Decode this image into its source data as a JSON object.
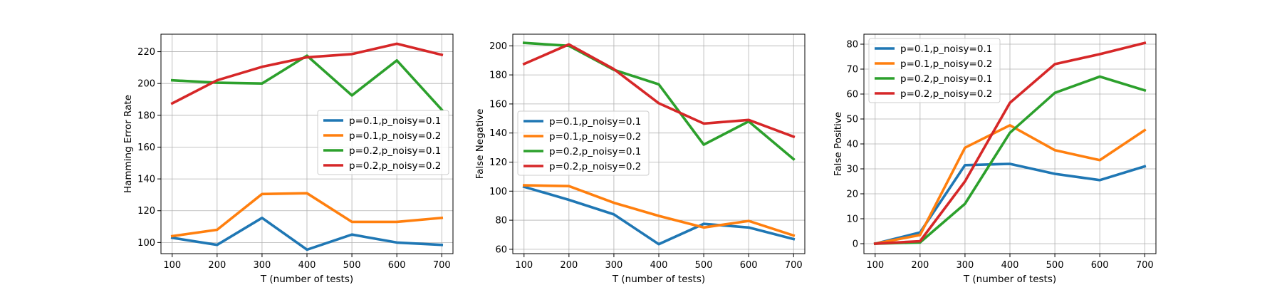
{
  "chart_data": [
    {
      "type": "line",
      "xlabel": "T (number of tests)",
      "ylabel": "Hamming Error Rate",
      "x": [
        100,
        200,
        300,
        400,
        500,
        600,
        700
      ],
      "xticks": [
        100,
        200,
        300,
        400,
        500,
        600,
        700
      ],
      "xlim": [
        75,
        725
      ],
      "yticks": [
        100,
        120,
        140,
        160,
        180,
        200,
        220
      ],
      "ylim": [
        93,
        231
      ],
      "grid": true,
      "legend_position": "center-right",
      "series": [
        {
          "name": "p=0.1,p_noisy=0.1",
          "color": "#1f77b4",
          "values": [
            103,
            98.5,
            115.5,
            95.5,
            105,
            100,
            98.5
          ]
        },
        {
          "name": "p=0.1,p_noisy=0.2",
          "color": "#ff7f0e",
          "values": [
            104,
            108,
            130.5,
            131,
            113,
            113,
            115.5
          ]
        },
        {
          "name": "p=0.2,p_noisy=0.1",
          "color": "#2ca02c",
          "values": [
            202,
            200.5,
            200,
            217.5,
            192.5,
            214.5,
            183.5
          ]
        },
        {
          "name": "p=0.2,p_noisy=0.2",
          "color": "#d62728",
          "values": [
            187.5,
            202,
            210.5,
            216.5,
            218.5,
            225,
            218
          ]
        }
      ]
    },
    {
      "type": "line",
      "xlabel": "T (number of tests)",
      "ylabel": "False Negative",
      "x": [
        100,
        200,
        300,
        400,
        500,
        600,
        700
      ],
      "xticks": [
        100,
        200,
        300,
        400,
        500,
        600,
        700
      ],
      "xlim": [
        75,
        725
      ],
      "yticks": [
        60,
        80,
        100,
        120,
        140,
        160,
        180,
        200
      ],
      "ylim": [
        57,
        208
      ],
      "grid": true,
      "legend_position": "center-left",
      "series": [
        {
          "name": "p=0.1,p_noisy=0.1",
          "color": "#1f77b4",
          "values": [
            103,
            94,
            84,
            63.5,
            77.5,
            75,
            67
          ]
        },
        {
          "name": "p=0.1,p_noisy=0.2",
          "color": "#ff7f0e",
          "values": [
            104,
            103.5,
            92,
            83,
            75,
            79.5,
            69.5
          ]
        },
        {
          "name": "p=0.2,p_noisy=0.1",
          "color": "#2ca02c",
          "values": [
            202,
            200,
            183.5,
            173.5,
            132,
            148,
            122
          ]
        },
        {
          "name": "p=0.2,p_noisy=0.2",
          "color": "#d62728",
          "values": [
            187.5,
            201,
            184,
            160.5,
            146.5,
            149,
            137.5
          ]
        }
      ]
    },
    {
      "type": "line",
      "xlabel": "T (number of tests)",
      "ylabel": "False Positive",
      "x": [
        100,
        200,
        300,
        400,
        500,
        600,
        700
      ],
      "xticks": [
        100,
        200,
        300,
        400,
        500,
        600,
        700
      ],
      "xlim": [
        75,
        725
      ],
      "yticks": [
        0,
        10,
        20,
        30,
        40,
        50,
        60,
        70,
        80
      ],
      "ylim": [
        -4,
        84
      ],
      "grid": true,
      "legend_position": "upper-left",
      "series": [
        {
          "name": "p=0.1,p_noisy=0.1",
          "color": "#1f77b4",
          "values": [
            0,
            4.5,
            31.5,
            32,
            28,
            25.5,
            31
          ]
        },
        {
          "name": "p=0.1,p_noisy=0.2",
          "color": "#ff7f0e",
          "values": [
            0,
            3.5,
            38.5,
            47.5,
            37.5,
            33.5,
            45.5
          ]
        },
        {
          "name": "p=0.2,p_noisy=0.1",
          "color": "#2ca02c",
          "values": [
            0,
            0.5,
            16,
            44.5,
            60.5,
            67,
            61.5
          ]
        },
        {
          "name": "p=0.2,p_noisy=0.2",
          "color": "#d62728",
          "values": [
            0,
            1,
            25,
            56.5,
            72,
            76,
            80.5
          ]
        }
      ]
    }
  ]
}
